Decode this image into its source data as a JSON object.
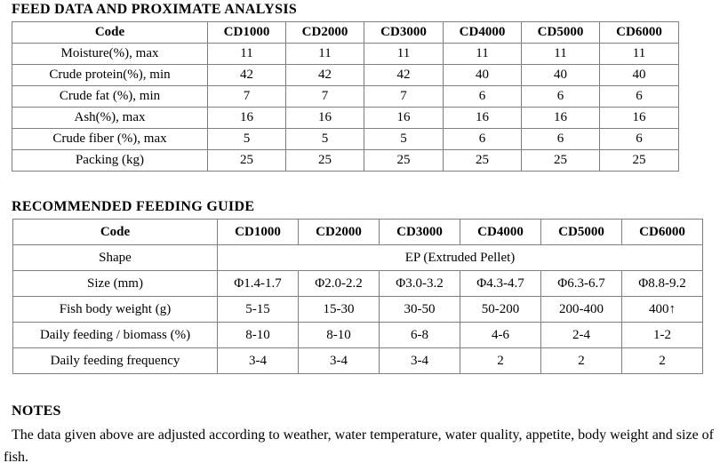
{
  "tables": {
    "proximate": {
      "title": "FEED DATA AND PROXIMATE ANALYSIS",
      "columns": [
        "Code",
        "CD1000",
        "CD2000",
        "CD3000",
        "CD4000",
        "CD5000",
        "CD6000"
      ],
      "rows": [
        {
          "label": "Moisture(%), max",
          "values": [
            "11",
            "11",
            "11",
            "11",
            "11",
            "11"
          ]
        },
        {
          "label": "Crude protein(%), min",
          "values": [
            "42",
            "42",
            "42",
            "40",
            "40",
            "40"
          ]
        },
        {
          "label": "Crude fat (%), min",
          "values": [
            "7",
            "7",
            "7",
            "6",
            "6",
            "6"
          ]
        },
        {
          "label": "Ash(%), max",
          "values": [
            "16",
            "16",
            "16",
            "16",
            "16",
            "16"
          ]
        },
        {
          "label": "Crude fiber (%), max",
          "values": [
            "5",
            "5",
            "5",
            "6",
            "6",
            "6"
          ]
        },
        {
          "label": "Packing (kg)",
          "values": [
            "25",
            "25",
            "25",
            "25",
            "25",
            "25"
          ]
        }
      ]
    },
    "feeding": {
      "title": "RECOMMENDED FEEDING GUIDE",
      "columns": [
        "Code",
        "CD1000",
        "CD2000",
        "CD3000",
        "CD4000",
        "CD5000",
        "CD6000"
      ],
      "rows": [
        {
          "label": "Shape",
          "span": "EP (Extruded Pellet)"
        },
        {
          "label": "Size (mm)",
          "values": [
            "Φ1.4-1.7",
            "Φ2.0-2.2",
            "Φ3.0-3.2",
            "Φ4.3-4.7",
            "Φ6.3-6.7",
            "Φ8.8-9.2"
          ]
        },
        {
          "label": "Fish body weight (g)",
          "values": [
            "5-15",
            "15-30",
            "30-50",
            "50-200",
            "200-400",
            "400↑"
          ]
        },
        {
          "label": "Daily feeding / biomass (%)",
          "values": [
            "8-10",
            "8-10",
            "6-8",
            "4-6",
            "2-4",
            "1-2"
          ]
        },
        {
          "label": "Daily feeding frequency",
          "values": [
            "3-4",
            "3-4",
            "3-4",
            "2",
            "2",
            "2"
          ]
        }
      ]
    }
  },
  "notes": {
    "title": "NOTES",
    "text": "The data given above are adjusted according to weather, water temperature, water quality, appetite, body weight and size of fish."
  }
}
